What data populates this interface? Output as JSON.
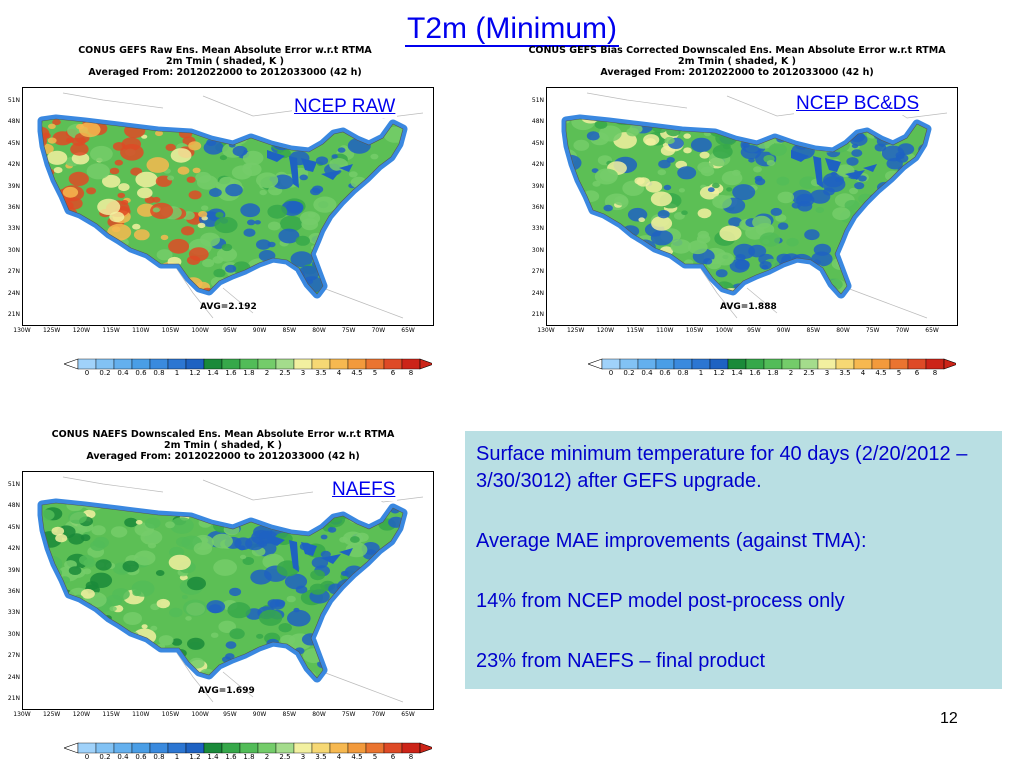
{
  "slide_title": "T2m (Minimum)",
  "panels": [
    {
      "title_lines": [
        "CONUS GEFS Raw Ens. Mean Absolute Error w.r.t RTMA",
        "2m Tmin ( shaded, K )",
        "Averaged From: 2012022000 to 2012033000 (42 h)"
      ],
      "label": "NCEP RAW",
      "avg": "AVG=2.192",
      "map_style": "raw"
    },
    {
      "title_lines": [
        "CONUS GEFS Bias Corrected Downscaled Ens. Mean Absolute Error w.r.t RTMA",
        "2m Tmin ( shaded, K )",
        "Averaged From: 2012022000 to 2012033000 (42 h)"
      ],
      "label": "NCEP BC&DS",
      "avg": "AVG=1.888",
      "map_style": "bc"
    },
    {
      "title_lines": [
        "CONUS NAEFS Downscaled Ens. Mean Absolute Error w.r.t RTMA",
        "2m Tmin ( shaded, K )",
        "Averaged From: 2012022000 to 2012033000 (42 h)"
      ],
      "label": "NAEFS",
      "avg": "AVG=1.699",
      "map_style": "naefs"
    }
  ],
  "lat_labels": [
    "51N",
    "48N",
    "45N",
    "42N",
    "39N",
    "36N",
    "33N",
    "30N",
    "27N",
    "24N",
    "21N"
  ],
  "lon_labels": [
    "130W",
    "125W",
    "120W",
    "115W",
    "110W",
    "105W",
    "100W",
    "95W",
    "90W",
    "85W",
    "80W",
    "75W",
    "70W",
    "65W"
  ],
  "colorbar": {
    "levels": [
      "0",
      "0.2",
      "0.4",
      "0.6",
      "0.8",
      "1",
      "1.2",
      "1.4",
      "1.6",
      "1.8",
      "2",
      "2.5",
      "3",
      "3.5",
      "4",
      "4.5",
      "5",
      "6",
      "8"
    ],
    "colors": [
      "#a0d2fa",
      "#82c2f4",
      "#64b0ee",
      "#4a9ee6",
      "#3a8ade",
      "#2c76d2",
      "#1e62c2",
      "#1a8a3a",
      "#36a84a",
      "#52bc58",
      "#74cc6a",
      "#a4dc8c",
      "#f2f0a0",
      "#f6d874",
      "#f6b850",
      "#f29a3c",
      "#ea7430",
      "#de4a26",
      "#cc2418"
    ]
  },
  "textbox": {
    "lines": [
      "Surface minimum temperature for 40 days (2/20/2012 – 3/30/3012) after GEFS upgrade.",
      "Average MAE improvements (against TMA):",
      "14% from NCEP model post-process only",
      "23% from NAEFS – final product"
    ],
    "bg_color": "#b9dfe3",
    "text_color": "#0000cc"
  },
  "page_number": "12"
}
